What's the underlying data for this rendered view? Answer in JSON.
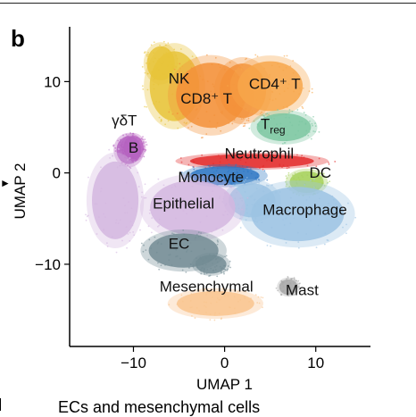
{
  "panel_label": "b",
  "caption_fragment": "ECs and mesenchymal cells",
  "chart_data": {
    "type": "scatter",
    "title": "",
    "xlabel": "UMAP 1",
    "ylabel": "UMAP 2",
    "xlim": [
      -17,
      16
    ],
    "ylim": [
      -19,
      16
    ],
    "xticks": [
      -10,
      0,
      10
    ],
    "yticks": [
      -10,
      0,
      10
    ],
    "x_tick_labels": [
      "−10",
      "0",
      "10"
    ],
    "y_tick_labels": [
      "−10",
      "0",
      "10"
    ],
    "grid": false,
    "legend": "none",
    "clusters": [
      {
        "label": "NK",
        "label_x": -5,
        "label_y": 9.8,
        "color": "#e8c43a",
        "blobs": [
          [
            -5.5,
            9.5,
            3.2,
            4.5
          ],
          [
            -7,
            12,
            1.8,
            2.2
          ]
        ]
      },
      {
        "label": "CD8⁺ T",
        "label_x": -2,
        "label_y": 7.6,
        "color": "#f3913a",
        "blobs": [
          [
            -1.5,
            8.5,
            4.5,
            4.2
          ],
          [
            2,
            9,
            3,
            3.5
          ]
        ]
      },
      {
        "label": "CD4⁺ T",
        "label_x": 5.5,
        "label_y": 9.2,
        "color": "#f7a64a",
        "blobs": [
          [
            5,
            9.5,
            4.2,
            3.2
          ]
        ]
      },
      {
        "label": "T",
        "sub": "reg",
        "label_x": 5.3,
        "label_y": 4.8,
        "color": "#7cc7a1",
        "blobs": [
          [
            6.5,
            5,
            3.5,
            1.8
          ]
        ]
      },
      {
        "label": "γδT",
        "label_x": -11,
        "label_y": 5.2,
        "color": "#c06ac4",
        "blobs": [
          [
            -10,
            2.8,
            1.3,
            1.5
          ]
        ]
      },
      {
        "label": "B",
        "label_x": -10,
        "label_y": 2.2,
        "color": "#b462bf",
        "blobs": [
          [
            -10.5,
            2.5,
            1.6,
            1.8
          ]
        ]
      },
      {
        "label": "Neutrophil",
        "label_x": 3.8,
        "label_y": 1.6,
        "color": "#e32b2b",
        "blobs": [
          [
            3,
            1.3,
            8,
            0.9
          ]
        ]
      },
      {
        "label": "Monocyte",
        "label_x": -1.5,
        "label_y": -1,
        "color": "#2f78c4",
        "blobs": [
          [
            0,
            -0.3,
            4.5,
            1.2
          ]
        ]
      },
      {
        "label": "DC",
        "label_x": 10.5,
        "label_y": -0.5,
        "color": "#a6d15a",
        "blobs": [
          [
            9,
            -1,
            2.2,
            1.4
          ]
        ]
      },
      {
        "label": "Macrophage",
        "label_x": 8.8,
        "label_y": -4.6,
        "color": "#9cc3e3",
        "blobs": [
          [
            8,
            -4.5,
            6,
            3.5
          ],
          [
            3,
            -3,
            3,
            2.2
          ]
        ]
      },
      {
        "label": "Epithelial",
        "label_x": -4.5,
        "label_y": -3.9,
        "color": "#d4b6df",
        "blobs": [
          [
            -3.5,
            -3.8,
            5.5,
            3.5
          ],
          [
            -12,
            -3,
            3,
            5
          ]
        ]
      },
      {
        "label": "EC",
        "label_x": -5,
        "label_y": -8.3,
        "color": "#738c94",
        "blobs": [
          [
            -4.5,
            -8.5,
            4.5,
            2.2
          ],
          [
            -1.5,
            -10,
            2,
            1.2
          ]
        ]
      },
      {
        "label": "Mesenchymal",
        "label_x": -2,
        "label_y": -13,
        "color": "#f9c48e",
        "blobs": [
          [
            -1,
            -14.3,
            5,
            1.6
          ]
        ]
      },
      {
        "label": "Mast",
        "label_x": 8.5,
        "label_y": -13.4,
        "color": "#a8a8a8",
        "blobs": [
          [
            7,
            -12.5,
            1.2,
            1
          ]
        ]
      }
    ]
  }
}
